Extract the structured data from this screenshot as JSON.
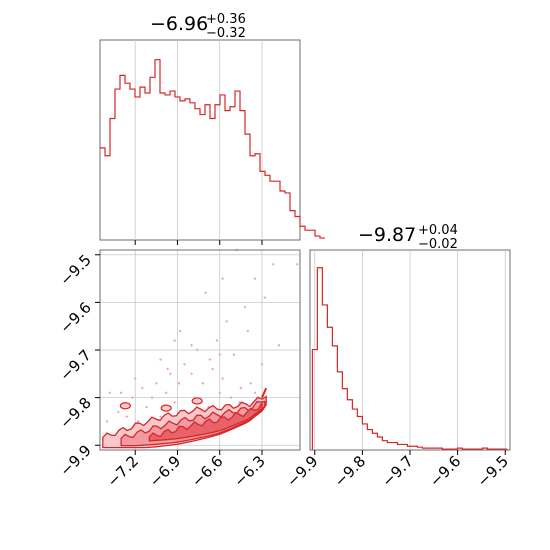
{
  "chart_data": [
    {
      "type": "histogram",
      "panel": "top-left",
      "title_main": "−6.96",
      "title_sup": "+0.36",
      "title_sub": "−0.32",
      "x_range": [
        -7.45,
        -6.03
      ],
      "grid": true,
      "bin_edges_start": -7.45,
      "bin_width": 0.0355,
      "bin_heights": [
        0.47,
        0.43,
        0.62,
        0.77,
        0.84,
        0.8,
        0.77,
        0.73,
        0.78,
        0.75,
        0.83,
        0.92,
        0.75,
        0.74,
        0.76,
        0.73,
        0.71,
        0.72,
        0.7,
        0.67,
        0.64,
        0.69,
        0.62,
        0.69,
        0.74,
        0.66,
        0.68,
        0.76,
        0.66,
        0.54,
        0.43,
        0.44,
        0.35,
        0.33,
        0.3,
        0.3,
        0.25,
        0.24,
        0.15,
        0.12,
        0.07,
        0.05,
        0.05,
        0.02,
        0.01
      ]
    },
    {
      "type": "histogram",
      "panel": "bottom-right",
      "title_main": "−9.87",
      "title_sup": "+0.04",
      "title_sub": "−0.02",
      "x_range": [
        -9.91,
        -9.49
      ],
      "x_ticks": [
        "−9.9",
        "−9.8",
        "−9.7",
        "−9.6",
        "−9.5"
      ],
      "x_tick_values": [
        -9.9,
        -9.8,
        -9.7,
        -9.6,
        -9.5
      ],
      "grid": true,
      "bin_edges_start": -9.905,
      "bin_width": 0.0105,
      "bin_heights": [
        0.54,
        0.98,
        0.78,
        0.66,
        0.56,
        0.42,
        0.33,
        0.27,
        0.22,
        0.18,
        0.14,
        0.11,
        0.09,
        0.07,
        0.05,
        0.04,
        0.04,
        0.03,
        0.03,
        0.02,
        0.02,
        0.015,
        0.01,
        0.01,
        0.01,
        0.01,
        0.005,
        0.005,
        0.005,
        0.01,
        0.005,
        0.005,
        0.005,
        0.005,
        0.01,
        0.005,
        0.005,
        0.005,
        0.005
      ]
    },
    {
      "type": "scatter",
      "subtype": "2d-contour-corner",
      "panel": "bottom-left",
      "x_range": [
        -7.45,
        -6.03
      ],
      "y_range": [
        -9.91,
        -9.49
      ],
      "x_ticks": [
        "−7.2",
        "−6.9",
        "−6.6",
        "−6.3"
      ],
      "x_tick_values": [
        -7.2,
        -6.9,
        -6.6,
        -6.3
      ],
      "y_ticks": [
        "−9.9",
        "−9.8",
        "−9.7",
        "−9.6",
        "−9.5"
      ],
      "y_tick_values": [
        -9.9,
        -9.8,
        -9.7,
        -9.6,
        -9.5
      ],
      "grid": true,
      "ridge_x": [
        -7.45,
        -7.2,
        -6.9,
        -6.6,
        -6.4,
        -6.3,
        -6.25
      ],
      "ridge_y": [
        -9.9,
        -9.892,
        -9.878,
        -9.86,
        -9.84,
        -9.82,
        -9.8
      ],
      "scatter_points": [
        [
          -6.48,
          -9.49
        ],
        [
          -6.22,
          -9.52
        ],
        [
          -6.05,
          -9.52
        ],
        [
          -6.35,
          -9.55
        ],
        [
          -6.58,
          -9.55
        ],
        [
          -6.7,
          -9.58
        ],
        [
          -6.28,
          -9.59
        ],
        [
          -6.42,
          -9.61
        ],
        [
          -6.88,
          -9.66
        ],
        [
          -6.55,
          -9.64
        ],
        [
          -6.92,
          -9.68
        ],
        [
          -6.62,
          -9.68
        ],
        [
          -6.4,
          -9.66
        ],
        [
          -6.18,
          -9.69
        ],
        [
          -6.76,
          -9.7
        ],
        [
          -6.5,
          -9.71
        ],
        [
          -7.02,
          -9.72
        ],
        [
          -6.85,
          -9.73
        ],
        [
          -6.95,
          -9.75
        ],
        [
          -6.8,
          -9.75
        ],
        [
          -6.65,
          -9.74
        ],
        [
          -6.3,
          -9.73
        ],
        [
          -6.58,
          -9.76
        ],
        [
          -6.72,
          -9.77
        ],
        [
          -6.89,
          -9.77
        ],
        [
          -7.05,
          -9.77
        ],
        [
          -7.15,
          -9.78
        ],
        [
          -7.3,
          -9.79
        ],
        [
          -6.45,
          -9.78
        ],
        [
          -6.38,
          -9.77
        ],
        [
          -6.6,
          -9.79
        ],
        [
          -6.98,
          -9.79
        ],
        [
          -7.08,
          -9.8
        ],
        [
          -7.22,
          -9.8
        ],
        [
          -6.78,
          -9.8
        ],
        [
          -6.52,
          -9.8
        ],
        [
          -6.46,
          -9.81
        ],
        [
          -7.38,
          -9.79
        ],
        [
          -6.92,
          -9.81
        ],
        [
          -7.12,
          -9.82
        ],
        [
          -6.68,
          -9.82
        ],
        [
          -6.55,
          -9.83
        ],
        [
          -6.86,
          -9.83
        ],
        [
          -7.02,
          -9.84
        ],
        [
          -7.32,
          -9.83
        ],
        [
          -7.26,
          -9.84
        ],
        [
          -6.42,
          -9.83
        ],
        [
          -6.75,
          -9.85
        ],
        [
          -6.62,
          -9.84
        ],
        [
          -7.18,
          -9.85
        ],
        [
          -6.95,
          -9.86
        ],
        [
          -6.82,
          -9.86
        ],
        [
          -7.4,
          -9.85
        ],
        [
          -7.1,
          -9.87
        ],
        [
          -6.5,
          -9.86
        ],
        [
          -6.7,
          -9.87
        ],
        [
          -6.97,
          -9.74
        ],
        [
          -6.67,
          -9.72
        ],
        [
          -7.2,
          -9.76
        ],
        [
          -6.35,
          -9.79
        ],
        [
          -6.8,
          -9.69
        ],
        [
          -6.6,
          -9.71
        ]
      ]
    }
  ],
  "colors": {
    "line": "#d62728",
    "fill_dark": "#e8626a",
    "fill_light": "#f7c9cd",
    "scatter": "#efaaaf",
    "grid": "#c8c8c8",
    "axis": "#6e6e6e"
  }
}
